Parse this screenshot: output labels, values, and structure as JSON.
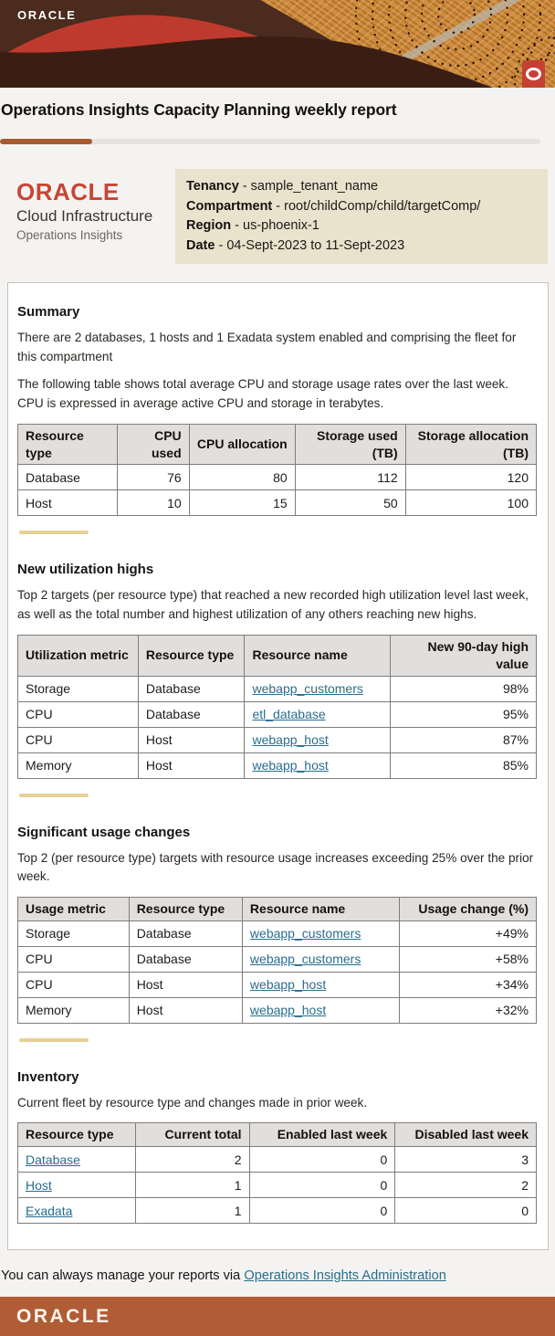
{
  "banner": {
    "logo_text": "ORACLE"
  },
  "title": "Operations Insights Capacity Planning weekly report",
  "brand": {
    "name": "ORACLE",
    "product": "Cloud Infrastructure",
    "service": "Operations Insights"
  },
  "meta": {
    "sep": " - ",
    "rows": [
      {
        "label": "Tenancy",
        "value": "sample_tenant_name"
      },
      {
        "label": "Compartment",
        "value": "root/childComp/child/targetComp/"
      },
      {
        "label": "Region",
        "value": "us-phoenix-1"
      },
      {
        "label": "Date",
        "value": "04-Sept-2023 to 11-Sept-2023"
      }
    ]
  },
  "sections": {
    "summary": {
      "heading": "Summary",
      "para1": "There are 2 databases, 1 hosts and 1 Exadata system enabled and comprising the fleet for this compartment",
      "para2": "The following table shows total average CPU and storage usage rates over the last week. CPU is expressed in average active CPU and storage in terabytes.",
      "table": {
        "headers": [
          "Resource type",
          "CPU used",
          "CPU allocation",
          "Storage used (TB)",
          "Storage allocation (TB)"
        ],
        "align": [
          "left",
          "right",
          "right",
          "right",
          "right"
        ],
        "widths": [
          "19%",
          "13%",
          "20.5%",
          "21.5%",
          "26%"
        ],
        "link_cols": [],
        "rows": [
          [
            "Database",
            "76",
            "80",
            "112",
            "120"
          ],
          [
            "Host",
            "10",
            "15",
            "50",
            "100"
          ]
        ]
      }
    },
    "utilization_highs": {
      "heading": "New utilization highs",
      "para": "Top 2 targets (per resource type) that reached a new recorded high utilization level last week, as well as the total number and highest utilization of any others reaching new highs.",
      "table": {
        "headers": [
          "Utilization metric",
          "Resource type",
          "Resource name",
          "New 90-day high value"
        ],
        "align": [
          "left",
          "left",
          "left",
          "right"
        ],
        "widths": [
          "23%",
          "20%",
          "28.5%",
          "28.5%"
        ],
        "link_cols": [
          2
        ],
        "rows": [
          [
            "Storage",
            "Database",
            "webapp_customers",
            "98%"
          ],
          [
            "CPU",
            "Database",
            "etl_database",
            "95%"
          ],
          [
            "CPU",
            "Host",
            "webapp_host",
            "87%"
          ],
          [
            "Memory",
            "Host",
            "webapp_host",
            "85%"
          ]
        ]
      }
    },
    "usage_changes": {
      "heading": "Significant usage changes",
      "para": "Top 2 (per resource type) targets with resource usage increases exceeding 25% over the prior week.",
      "table": {
        "headers": [
          "Usage metric",
          "Resource type",
          "Resource name",
          "Usage change (%)"
        ],
        "align": [
          "left",
          "left",
          "left",
          "right"
        ],
        "widths": [
          "21%",
          "21.5%",
          "31%",
          "26.5%"
        ],
        "link_cols": [
          2
        ],
        "rows": [
          [
            "Storage",
            "Database",
            "webapp_customers",
            "+49%"
          ],
          [
            "CPU",
            "Database",
            "webapp_customers",
            "+58%"
          ],
          [
            "CPU",
            "Host",
            "webapp_host",
            "+34%"
          ],
          [
            "Memory",
            "Host",
            "webapp_host",
            "+32%"
          ]
        ]
      }
    },
    "inventory": {
      "heading": "Inventory",
      "para": "Current fleet by resource type and changes made in prior week.",
      "table": {
        "headers": [
          "Resource type",
          "Current total",
          "Enabled last week",
          "Disabled last week"
        ],
        "align": [
          "left",
          "right",
          "right",
          "right"
        ],
        "widths": [
          "22.5%",
          "21.5%",
          "28.5%",
          "27.5%"
        ],
        "link_cols": [
          0
        ],
        "rows": [
          [
            "Database",
            "2",
            "0",
            "3"
          ],
          [
            "Host",
            "1",
            "0",
            "2"
          ],
          [
            "Exadata",
            "1",
            "0",
            "0"
          ]
        ]
      }
    }
  },
  "footer": {
    "text": "You can always manage your reports via ",
    "link": "Operations Insights Administration",
    "logo_text": "ORACLE"
  },
  "colors": {
    "accent_rust": "#a85a31",
    "footer_bar": "#b05c35",
    "link_teal": "#276e8e",
    "oracle_red": "#c74634",
    "info_box_bg": "#e9e2cc",
    "divider_gold": "#e7cf96",
    "table_header_bg": "#e1dfdd"
  }
}
